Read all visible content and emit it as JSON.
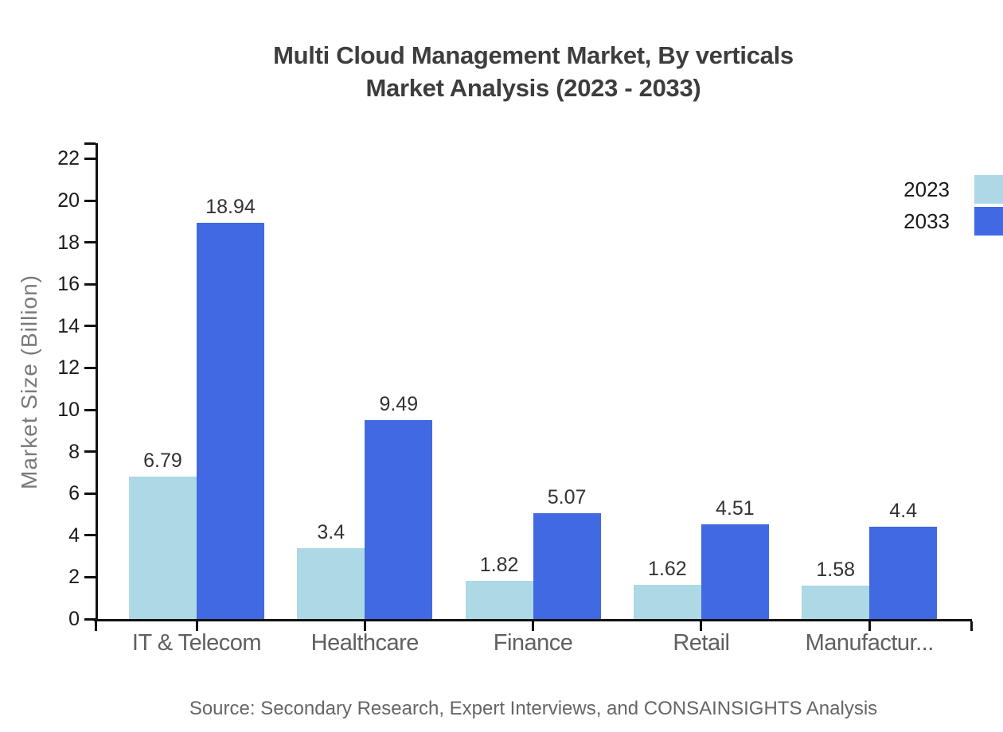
{
  "title": {
    "line1": "Multi Cloud Management Market, By verticals",
    "line2": "Market Analysis (2023 - 2033)"
  },
  "legend": {
    "items": [
      {
        "label": "2023",
        "color": "#ADD8E6"
      },
      {
        "label": "2033",
        "color": "#4169E1"
      }
    ]
  },
  "y_axis": {
    "label": "Market Size (Billion)",
    "tick_values": [
      0,
      2,
      4,
      6,
      8,
      10,
      12,
      14,
      16,
      18,
      20,
      22
    ]
  },
  "x_axis": {
    "categories": [
      "IT & Telecom",
      "Healthcare",
      "Finance",
      "Retail",
      "Manufactur..."
    ]
  },
  "source": "Source: Secondary Research, Expert Interviews, and CONSAINSIGHTS Analysis",
  "colors": {
    "series_2023": "#ADD8E6",
    "series_2033": "#4169E1",
    "axis": "#111111",
    "title_text": "#3d3d3d",
    "category_text": "#606060",
    "source_text": "#666666"
  },
  "chart_data": {
    "type": "bar",
    "title": "Multi Cloud Management Market, By verticals — Market Analysis (2023 - 2033)",
    "categories": [
      "IT & Telecom",
      "Healthcare",
      "Finance",
      "Retail",
      "Manufactur..."
    ],
    "series": [
      {
        "name": "2023",
        "color": "#ADD8E6",
        "values": [
          6.79,
          3.4,
          1.82,
          1.62,
          1.58
        ]
      },
      {
        "name": "2033",
        "color": "#4169E1",
        "values": [
          18.94,
          9.49,
          5.07,
          4.51,
          4.4
        ]
      }
    ],
    "xlabel": "",
    "ylabel": "Market Size (Billion)",
    "ylim": [
      0,
      22.7
    ],
    "ytick_step": 2,
    "grid": false,
    "legend_position": "top-right",
    "value_labels_shown": true
  }
}
